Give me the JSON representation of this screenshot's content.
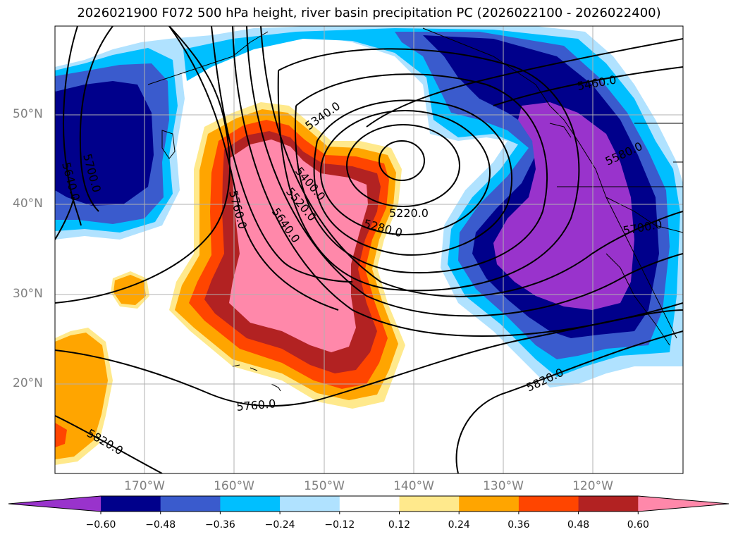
{
  "title": "2026021900 F072 500 hPa height, river basin precipitation PC (2026022100 - 2026022400)",
  "map": {
    "lat_labels": [
      "50°N",
      "40°N",
      "30°N",
      "20°N"
    ],
    "lon_labels": [
      "170°W",
      "160°W",
      "150°W",
      "140°W",
      "130°W",
      "120°W"
    ],
    "contour_labels": [
      "5340.0",
      "5220.0",
      "5280.0",
      "5400.0",
      "5520.0",
      "5640.0",
      "5760.0",
      "5700.0",
      "5640.0",
      "5460.0",
      "5580.0",
      "5700.0",
      "5820.0",
      "5760.0",
      "5820.0"
    ]
  },
  "colorbar": {
    "ticks": [
      "−0.60",
      "−0.48",
      "−0.36",
      "−0.24",
      "−0.12",
      "0.12",
      "0.24",
      "0.36",
      "0.48",
      "0.60"
    ],
    "colors": [
      "#9933cc",
      "#00008b",
      "#3a5bcd",
      "#00bfff",
      "#b0e2ff",
      "#ffffff",
      "#ffe98c",
      "#ffa500",
      "#ff4500",
      "#b22222",
      "#ff88aa"
    ]
  }
}
